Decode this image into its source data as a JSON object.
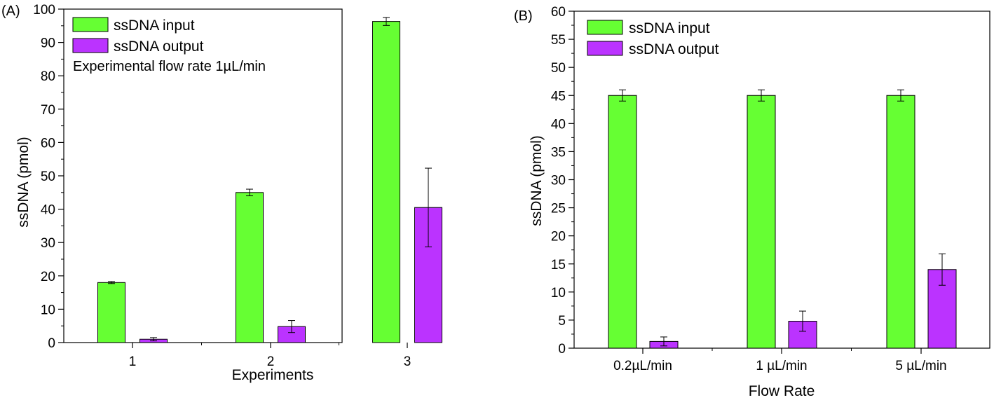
{
  "chart_data": [
    {
      "panel_label": "(A)",
      "type": "bar",
      "categories": [
        "1",
        "2",
        "3"
      ],
      "xlabel": "Experiments",
      "ylabel": "ssDNA (pmol)",
      "ylim": [
        0,
        100
      ],
      "yticks": [
        "0",
        "10",
        "20",
        "30",
        "40",
        "50",
        "60",
        "70",
        "80",
        "90",
        "100"
      ],
      "annotation": "Experimental flow rate 1µL/min",
      "series": [
        {
          "name": "ssDNA input",
          "color": "#66ff33",
          "values": [
            18,
            45,
            96.3
          ],
          "errors": [
            0.3,
            1.0,
            1.2
          ]
        },
        {
          "name": "ssDNA output",
          "color": "#bb33ff",
          "values": [
            1.0,
            4.8,
            40.5
          ],
          "errors": [
            0.5,
            1.8,
            11.8
          ]
        }
      ]
    },
    {
      "panel_label": "(B)",
      "type": "bar",
      "categories": [
        "0.2µL/min",
        "1 µL/min",
        "5 µL/min"
      ],
      "xlabel": "Flow Rate",
      "ylabel": "ssDNA (pmol)",
      "ylim": [
        0,
        60
      ],
      "yticks": [
        "0",
        "5",
        "10",
        "15",
        "20",
        "25",
        "30",
        "35",
        "40",
        "45",
        "50",
        "55",
        "60"
      ],
      "series": [
        {
          "name": "ssDNA input",
          "color": "#66ff33",
          "values": [
            45,
            45,
            45
          ],
          "errors": [
            1.0,
            1.0,
            1.0
          ]
        },
        {
          "name": "ssDNA output",
          "color": "#bb33ff",
          "values": [
            1.2,
            4.8,
            14.0
          ],
          "errors": [
            0.8,
            1.8,
            2.8
          ]
        }
      ]
    }
  ]
}
